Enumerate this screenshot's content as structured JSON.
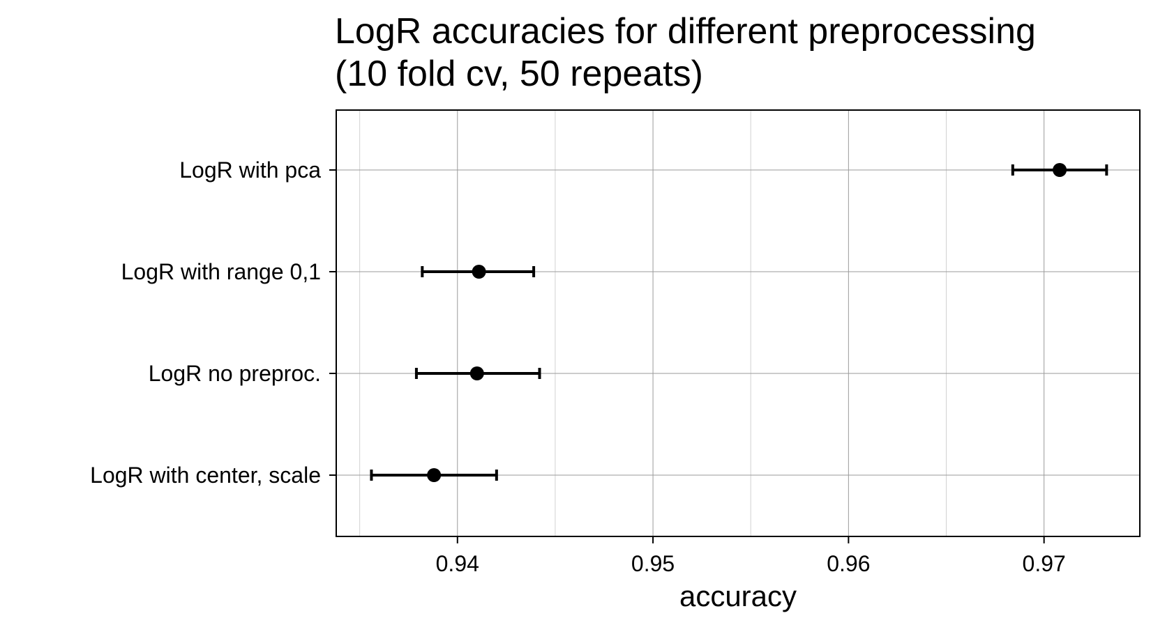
{
  "chart_data": {
    "type": "errorbar",
    "title": [
      "LogR accuracies for different preprocessing",
      "(10 fold cv, 50 repeats)"
    ],
    "xlabel": "accuracy",
    "ylabel": "",
    "xlim": [
      0.9338,
      0.9749
    ],
    "xticks": [
      0.94,
      0.95,
      0.96,
      0.97
    ],
    "xtick_labels": [
      "0.94",
      "0.95",
      "0.96",
      "0.97"
    ],
    "minor_xticks": [
      0.935,
      0.945,
      0.955,
      0.965
    ],
    "grid": true,
    "categories": [
      "LogR with pca",
      "LogR with range 0,1",
      "LogR no preproc.",
      "LogR with center, scale"
    ],
    "values": [
      0.9708,
      0.9411,
      0.941,
      0.9388
    ],
    "lower": [
      0.9684,
      0.9382,
      0.9379,
      0.9356
    ],
    "upper": [
      0.9732,
      0.9439,
      0.9442,
      0.942
    ],
    "colors": {
      "point": "#000000",
      "major_grid": "#9a9a9a",
      "minor_grid": "#d2d2d2",
      "frame": "#000000"
    }
  }
}
